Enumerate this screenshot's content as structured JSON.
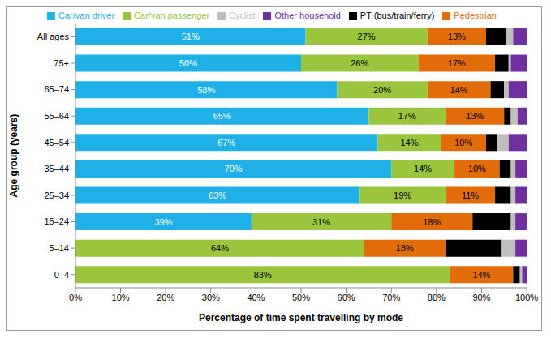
{
  "chart_data": {
    "type": "bar",
    "orientation": "horizontal",
    "stacked": true,
    "grid": false,
    "legend": "top",
    "data_labels": true,
    "x_label": "Percentage of time spent travelling by mode",
    "y_label": "Age group (years)",
    "categories": [
      "All ages",
      "75+",
      "65–74",
      "55–64",
      "45–54",
      "35–44",
      "25–34",
      "15–24",
      "5–14",
      "0–4"
    ],
    "xlim": [
      0,
      100
    ],
    "xticks": [
      {
        "value": 0,
        "label": "0%"
      },
      {
        "value": 10,
        "label": "10%"
      },
      {
        "value": 20,
        "label": "20%"
      },
      {
        "value": 30,
        "label": "30%"
      },
      {
        "value": 40,
        "label": "40%"
      },
      {
        "value": 50,
        "label": "50%"
      },
      {
        "value": 60,
        "label": "60%"
      },
      {
        "value": 70,
        "label": "70%"
      },
      {
        "value": 80,
        "label": "80%"
      },
      {
        "value": 90,
        "label": "90%"
      },
      {
        "value": 100,
        "label": "100%"
      }
    ],
    "series": [
      {
        "name": "Car/van driver",
        "color": "#1fb0e8",
        "data_labels": true,
        "values": [
          51,
          50,
          58,
          65,
          67,
          70,
          63,
          39,
          0,
          0
        ],
        "value_labels": [
          "51%",
          "50%",
          "58%",
          "65%",
          "67%",
          "70%",
          "63%",
          "39%",
          null,
          null
        ]
      },
      {
        "name": "Car/van passenger",
        "color": "#9bc53d",
        "data_labels": true,
        "values": [
          27,
          26,
          20,
          17,
          14,
          14,
          19,
          31,
          64,
          83
        ],
        "value_labels": [
          "27%",
          "26%",
          "20%",
          "17%",
          "14%",
          "14%",
          "19%",
          "31%",
          "64%",
          "83%"
        ]
      },
      {
        "name": "Pedestrian",
        "color": "#e36c0a",
        "data_labels": true,
        "values": [
          13,
          17,
          14,
          13,
          10,
          10,
          11,
          18,
          18,
          14
        ],
        "value_labels": [
          "13%",
          "17%",
          "14%",
          "13%",
          "10%",
          "10%",
          "11%",
          "18%",
          "18%",
          "14%"
        ]
      },
      {
        "name": "PT (bus/train/ferry)",
        "color": "#000000",
        "data_labels": false,
        "values": [
          4.5,
          3,
          3,
          1.5,
          2.5,
          2.5,
          3.5,
          8.5,
          12.5,
          1.5
        ]
      },
      {
        "name": "Cyclist",
        "color": "#bfbfbf",
        "data_labels": false,
        "values": [
          1.5,
          0.5,
          1,
          1.5,
          2.5,
          1,
          1,
          1,
          3,
          0.5
        ]
      },
      {
        "name": "Other household",
        "color": "#7030a0",
        "data_labels": false,
        "values": [
          3,
          3.5,
          4,
          2,
          4,
          2.5,
          2.5,
          2.5,
          2.5,
          1
        ]
      }
    ]
  }
}
